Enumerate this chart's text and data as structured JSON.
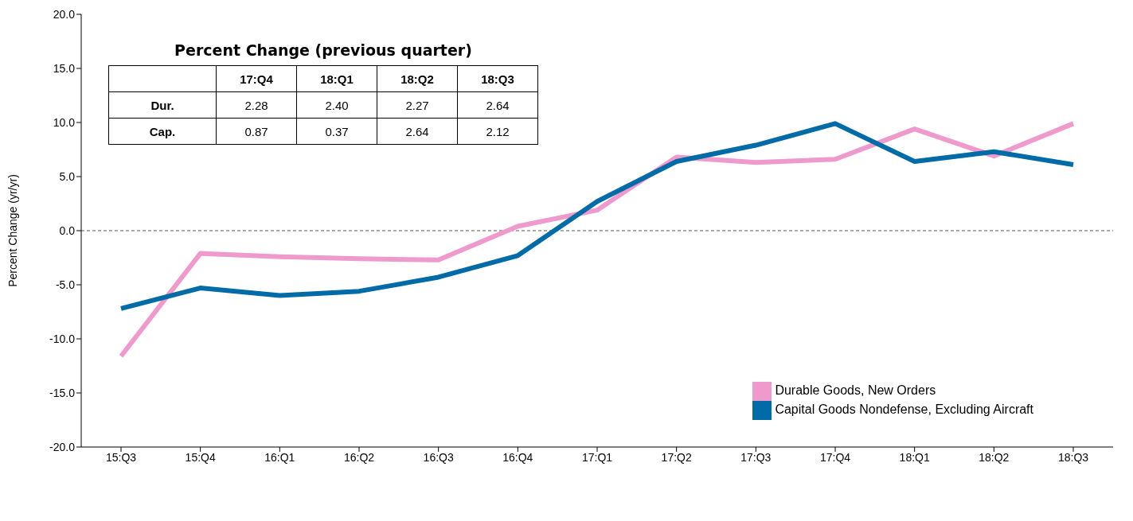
{
  "chart_data": [
    {
      "type": "line",
      "ylabel": "Percent Change (yr/yr)",
      "categories": [
        "15:Q3",
        "15:Q4",
        "16:Q1",
        "16:Q2",
        "16:Q3",
        "16:Q4",
        "17:Q1",
        "17:Q2",
        "17:Q3",
        "17:Q4",
        "18:Q1",
        "18:Q2",
        "18:Q3"
      ],
      "series": [
        {
          "name": "Durable Goods, New Orders",
          "color": "#ef9acd",
          "values": [
            -11.6,
            -2.1,
            -2.4,
            -2.6,
            -2.7,
            0.4,
            1.9,
            6.8,
            6.3,
            6.6,
            9.4,
            6.9,
            9.9
          ]
        },
        {
          "name": "Capital Goods Nondefense, Excluding Aircraft",
          "color": "#006ba6",
          "values": [
            -7.2,
            -5.3,
            -6.0,
            -5.6,
            -4.3,
            -2.3,
            2.7,
            6.4,
            7.9,
            9.9,
            6.4,
            7.3,
            6.1
          ]
        }
      ],
      "ylim": [
        -20,
        20
      ],
      "yticks": [
        {
          "value": -20,
          "label": "-20.0"
        },
        {
          "value": -15,
          "label": "-15.0"
        },
        {
          "value": -10,
          "label": "-10.0"
        },
        {
          "value": -5,
          "label": "-5.0"
        },
        {
          "value": 0,
          "label": "0.0"
        },
        {
          "value": 5,
          "label": "5.0"
        },
        {
          "value": 10,
          "label": "10.0"
        },
        {
          "value": 15,
          "label": "15.0"
        },
        {
          "value": 20,
          "label": "20.0"
        }
      ],
      "ref_lines": [
        {
          "axis": "y",
          "value": 0,
          "color": "#555555",
          "line_style": "dashed"
        }
      ],
      "legend": "bottom right",
      "marker": "none",
      "line_style": "solid",
      "grid": false
    },
    {
      "type": "other",
      "title": "Percent Change (previous quarter)",
      "categories": [
        "17:Q4",
        "18:Q1",
        "18:Q2",
        "18:Q3"
      ],
      "series": [
        {
          "name": "Dur.",
          "values": [
            2.28,
            2.4,
            2.27,
            2.64
          ],
          "value_labels": [
            "2.28",
            "2.40",
            "2.27",
            "2.64"
          ]
        },
        {
          "name": "Cap.",
          "values": [
            0.87,
            0.37,
            2.64,
            2.12
          ],
          "value_labels": [
            "0.87",
            "0.37",
            "2.64",
            "2.12"
          ]
        }
      ],
      "data_labels": true
    }
  ]
}
